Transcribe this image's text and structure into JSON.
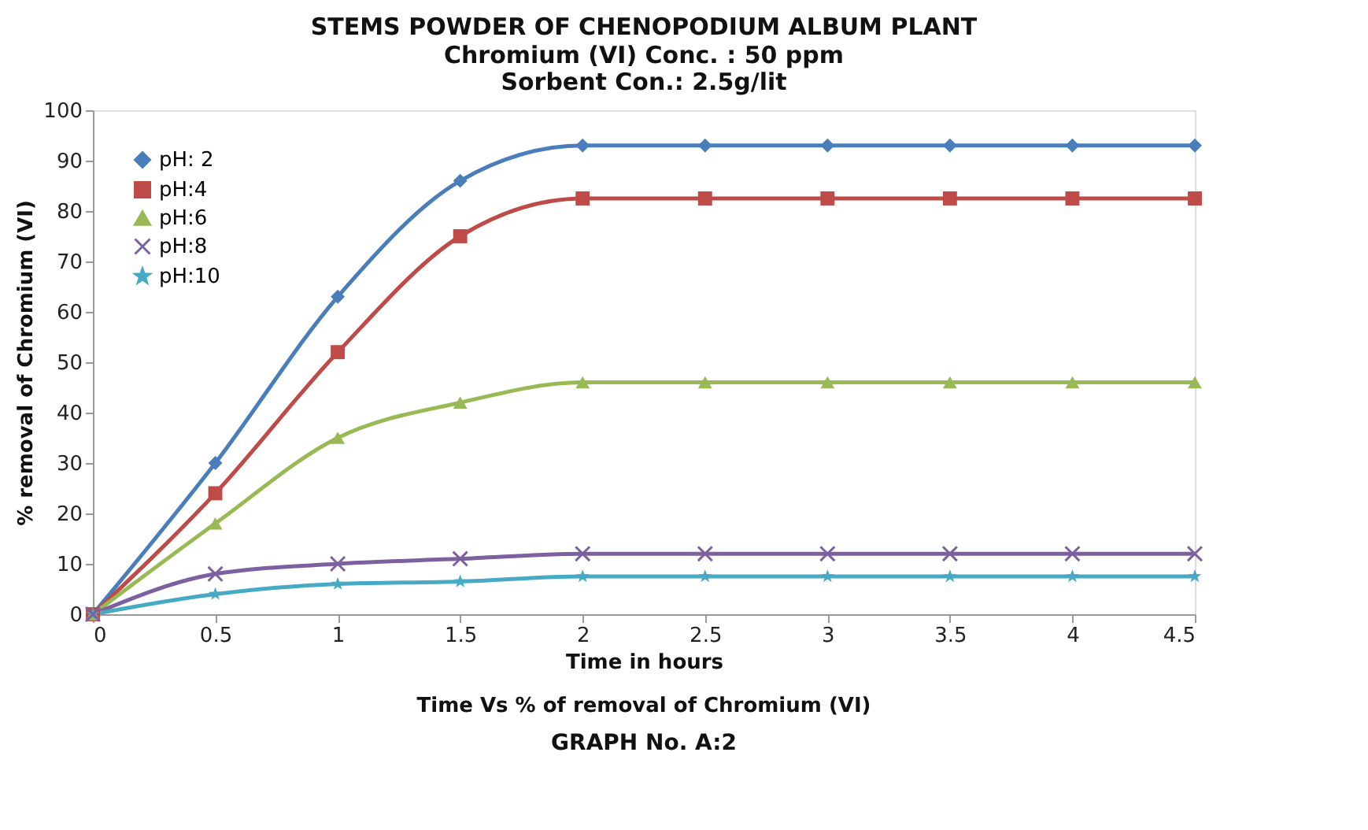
{
  "chart_data": {
    "type": "line",
    "title": "STEMS POWDER OF  CHENOPODIUM ALBUM PLANT",
    "subtitle": "Chromium (VI)  Conc. : 50 ppm\nSorbent Con.: 2.5g/lit",
    "xlabel": "Time in hours",
    "ylabel": "% removal of Chromium (VI)",
    "annotations": [
      "Time Vs % of removal of Chromium (VI)",
      "GRAPH No. A:2"
    ],
    "x": [
      0,
      0.5,
      1,
      1.5,
      2,
      2.5,
      3,
      3.5,
      4,
      4.5
    ],
    "series": [
      {
        "name": "pH:  2",
        "color": "#4a7ebb",
        "marker": "diamond",
        "values": [
          0,
          30,
          63,
          86,
          93,
          93,
          93,
          93,
          93,
          93
        ]
      },
      {
        "name": "pH:4",
        "color": "#be4b48",
        "marker": "square",
        "values": [
          0,
          24,
          52,
          75,
          82.5,
          82.5,
          82.5,
          82.5,
          82.5,
          82.5
        ]
      },
      {
        "name": "pH:6",
        "color": "#98b954",
        "marker": "triangle",
        "values": [
          0,
          18,
          35,
          42,
          46,
          46,
          46,
          46,
          46,
          46
        ]
      },
      {
        "name": "pH:8",
        "color": "#7d60a0",
        "marker": "cross",
        "values": [
          0,
          8,
          10,
          11,
          12,
          12,
          12,
          12,
          12,
          12
        ]
      },
      {
        "name": "pH:10",
        "color": "#46aac5",
        "marker": "star",
        "values": [
          0,
          4,
          6,
          6.5,
          7.5,
          7.5,
          7.5,
          7.5,
          7.5,
          7.5
        ]
      }
    ],
    "xlim": [
      0,
      4.5
    ],
    "xticks": [
      0,
      0.5,
      1,
      1.5,
      2,
      2.5,
      3,
      3.5,
      4,
      4.5
    ],
    "ylim": [
      0,
      100
    ],
    "yticks": [
      0,
      10,
      20,
      30,
      40,
      50,
      60,
      70,
      80,
      90,
      100
    ],
    "grid": false,
    "legend": "top left",
    "line_style": "solid"
  }
}
